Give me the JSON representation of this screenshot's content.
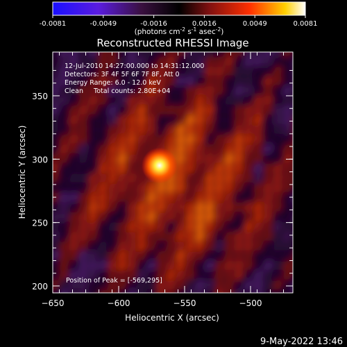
{
  "colorbar": {
    "ticks": [
      "-0.0081",
      "-0.0049",
      "-0.0016",
      "0.0016",
      "0.0049",
      "0.0081"
    ],
    "units": "(photons cm",
    "units_exp1": "-2",
    "units_mid": " s",
    "units_exp2": "-1",
    "units_mid2": " asec",
    "units_exp3": "-2",
    "units_end": ")",
    "colors": [
      "#1a10ff",
      "#6a20d0",
      "#3a1040",
      "#000000",
      "#801010",
      "#ff3000",
      "#ffd000",
      "#ffffff"
    ]
  },
  "chart_data": {
    "type": "heatmap",
    "title": "Reconstructed RHESSI Image",
    "xlabel": "Heliocentric X (arcsec)",
    "ylabel": "Heliocentric Y (arcsec)",
    "xlim": [
      -654,
      -608
    ],
    "ylim": [
      195,
      378
    ],
    "x_ticks": [
      -650,
      -600,
      -550,
      -500
    ],
    "y_ticks": [
      200,
      250,
      300,
      350
    ],
    "x_tick_labels": [
      "−650",
      "−600",
      "−550",
      "−500"
    ],
    "y_tick_labels": [
      "200",
      "250",
      "300",
      "350"
    ],
    "colorbar_range": [
      -0.0081,
      0.0081
    ],
    "peak": {
      "x": -569,
      "y": 295
    },
    "annotations": [
      "12-Jul-2010 14:27:00.000 to 14:31:12.000",
      "Detectors: 3F 4F 5F 6F 7F 8F, Att 0",
      "Energy Range: 6.0 - 12.0 keV",
      "Clean     Total counts: 2.80E+04"
    ],
    "peak_label": "Position of Peak = [-569,295]"
  },
  "footer": {
    "date": "9-May-2022 13:46"
  }
}
